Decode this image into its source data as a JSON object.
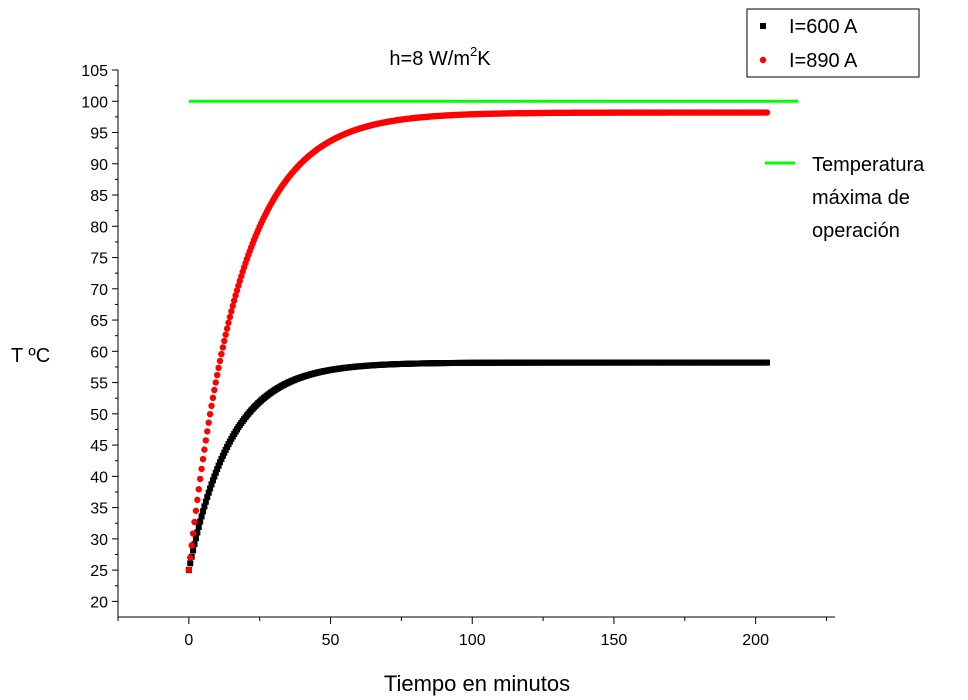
{
  "chart_data": {
    "type": "scatter",
    "title": "h=8 W/m2K",
    "title_parts": {
      "prefix": "h=8 W/m",
      "sup": "2",
      "suffix": "K"
    },
    "xlabel": "Tiempo en minutos",
    "ylabel": "T ºC",
    "xlim": [
      -25,
      228
    ],
    "ylim": [
      17.5,
      105
    ],
    "x_ticks": [
      0,
      50,
      100,
      150,
      200
    ],
    "y_ticks": [
      20,
      25,
      30,
      35,
      40,
      45,
      50,
      55,
      60,
      65,
      70,
      75,
      80,
      85,
      90,
      95,
      100,
      105
    ],
    "legend_placement": "top-right",
    "grid": false,
    "series": [
      {
        "name": "I=600 A",
        "marker": "square",
        "color": "#000000",
        "model": {
          "T0": 25,
          "Tinf": 58.2,
          "tau_min": 15,
          "t_start": 0,
          "t_end": 204
        }
      },
      {
        "name": "I=890 A",
        "marker": "circle",
        "color": "#ff0000",
        "model": {
          "T0": 25,
          "Tinf": 98.2,
          "tau_min": 18,
          "t_start": 0,
          "t_end": 204
        }
      }
    ],
    "reference_line": {
      "label_lines": [
        "Temperatura",
        "máxima de",
        "operación"
      ],
      "y": 100,
      "x_start": 0,
      "x_end": 215,
      "color": "#00ff00"
    }
  }
}
